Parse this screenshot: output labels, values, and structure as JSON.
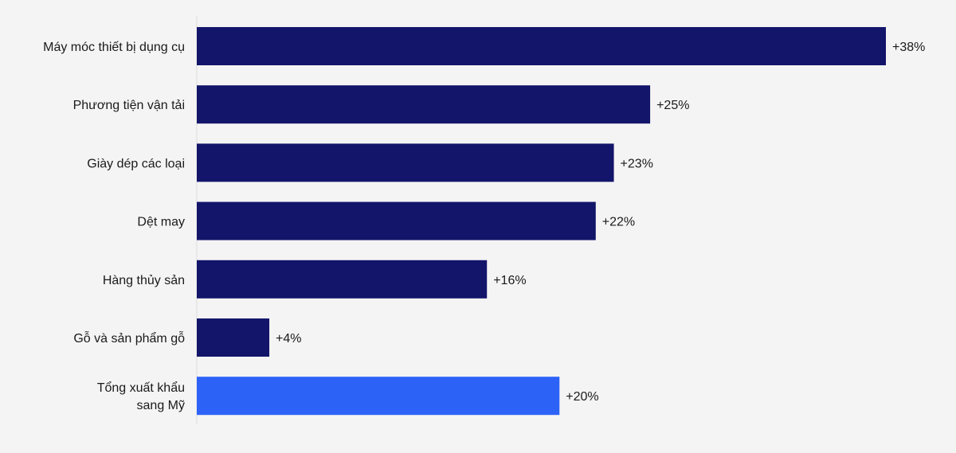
{
  "chart_data": {
    "type": "bar",
    "orientation": "horizontal",
    "categories": [
      "Máy móc thiết bị dụng cụ",
      "Phương tiện vận tải",
      "Giày dép các loại",
      "Dệt may",
      "Hàng thủy sản",
      "Gỗ và sản phẩm gỗ",
      "Tổng xuất khẩu sang Mỹ"
    ],
    "values": [
      38,
      25,
      23,
      22,
      16,
      4,
      20
    ],
    "labels": [
      "+38%",
      "+25%",
      "+23%",
      "+22%",
      "+16%",
      "+4%",
      "+20%"
    ],
    "highlight_index": 6,
    "colors": {
      "bar": "#13156a",
      "highlight": "#2d62f7",
      "axis": "#dddddd"
    },
    "xlim": [
      0,
      38
    ],
    "grid": false,
    "title": "",
    "xlabel": "",
    "ylabel": ""
  }
}
